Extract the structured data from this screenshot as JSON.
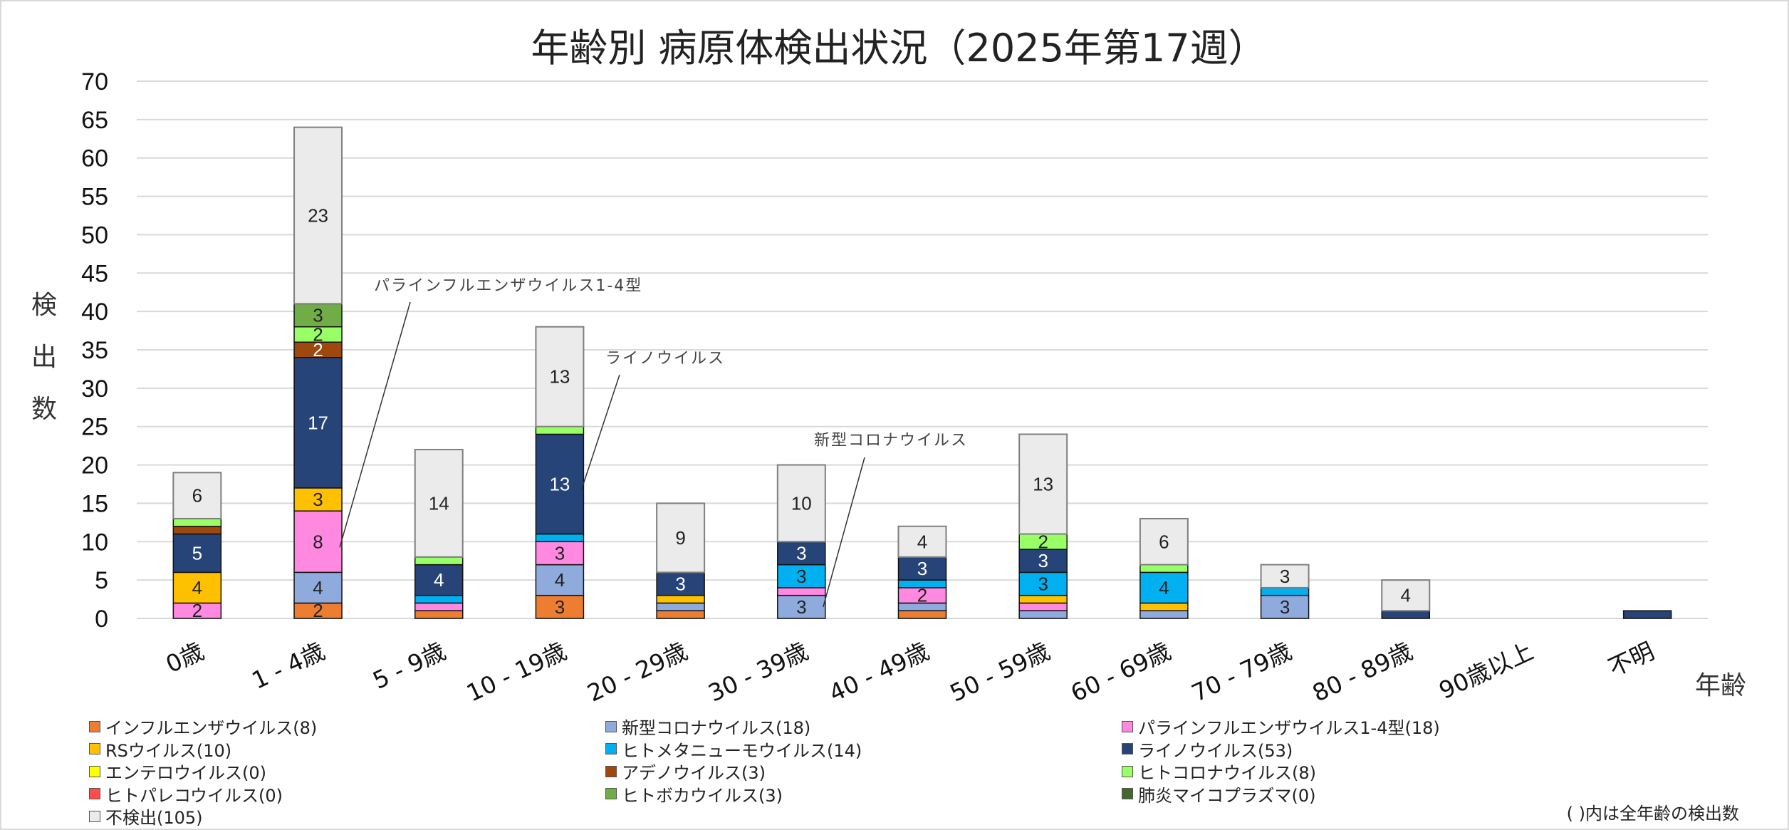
{
  "chart_data": {
    "type": "bar",
    "stacked": true,
    "title": "年齢別 病原体検出状況（2025年第17週）",
    "xlabel": "年齢",
    "ylabel": "検出数",
    "ylim": [
      0,
      70
    ],
    "yticks": [
      0,
      5,
      10,
      15,
      20,
      25,
      30,
      35,
      40,
      45,
      50,
      55,
      60,
      65,
      70
    ],
    "grid": true,
    "legend_position": "bottom",
    "categories": [
      "0歳",
      "1 - 4歳",
      "5 - 9歳",
      "10 - 19歳",
      "20 - 29歳",
      "30 - 39歳",
      "40 - 49歳",
      "50 - 59歳",
      "60 - 69歳",
      "70 - 79歳",
      "80 - 89歳",
      "90歳以上",
      "不明"
    ],
    "series": [
      {
        "name": "インフルエンザウイルス",
        "total": 8,
        "color": "#ED7D31",
        "label_color": "#222222",
        "values": [
          0,
          2,
          1,
          3,
          1,
          0,
          1,
          0,
          0,
          0,
          0,
          0,
          0
        ]
      },
      {
        "name": "新型コロナウイルス",
        "total": 18,
        "color": "#8FAADC",
        "label_color": "#222222",
        "values": [
          0,
          4,
          0,
          4,
          1,
          3,
          1,
          1,
          1,
          3,
          0,
          0,
          0
        ]
      },
      {
        "name": "パラインフルエンザウイルス1-4型",
        "total": 18,
        "color": "#FF88E0",
        "label_color": "#222222",
        "values": [
          2,
          8,
          1,
          3,
          0,
          1,
          2,
          1,
          0,
          0,
          0,
          0,
          0
        ]
      },
      {
        "name": "RSウイルス",
        "total": 10,
        "color": "#FFC000",
        "label_color": "#222222",
        "values": [
          4,
          3,
          0,
          0,
          1,
          0,
          0,
          1,
          1,
          0,
          0,
          0,
          0
        ]
      },
      {
        "name": "ヒトメタニューモウイルス",
        "total": 14,
        "color": "#00B0F0",
        "label_color": "#222222",
        "values": [
          0,
          0,
          1,
          1,
          0,
          3,
          1,
          3,
          4,
          1,
          0,
          0,
          0
        ]
      },
      {
        "name": "ライノウイルス",
        "total": 53,
        "color": "#264478",
        "label_color": "#FFFFFF",
        "values": [
          5,
          17,
          4,
          13,
          3,
          3,
          3,
          3,
          0,
          0,
          1,
          0,
          1
        ]
      },
      {
        "name": "エンテロウイルス",
        "total": 0,
        "color": "#FFFF00",
        "label_color": "#222222",
        "values": [
          0,
          0,
          0,
          0,
          0,
          0,
          0,
          0,
          0,
          0,
          0,
          0,
          0
        ]
      },
      {
        "name": "アデノウイルス",
        "total": 3,
        "color": "#9E480E",
        "label_color": "#FFFFFF",
        "values": [
          1,
          2,
          0,
          0,
          0,
          0,
          0,
          0,
          0,
          0,
          0,
          0,
          0
        ]
      },
      {
        "name": "ヒトコロナウイルス",
        "total": 8,
        "color": "#99FF66",
        "label_color": "#222222",
        "values": [
          1,
          2,
          1,
          1,
          0,
          0,
          0,
          2,
          1,
          0,
          0,
          0,
          0
        ]
      },
      {
        "name": "ヒトパレコウイルス",
        "total": 0,
        "color": "#FF4B4B",
        "label_color": "#222222",
        "values": [
          0,
          0,
          0,
          0,
          0,
          0,
          0,
          0,
          0,
          0,
          0,
          0,
          0
        ]
      },
      {
        "name": "ヒトボカウイルス",
        "total": 3,
        "color": "#70AD47",
        "label_color": "#222222",
        "values": [
          0,
          3,
          0,
          0,
          0,
          0,
          0,
          0,
          0,
          0,
          0,
          0,
          0
        ]
      },
      {
        "name": "肺炎マイコプラズマ",
        "total": 0,
        "color": "#43682B",
        "label_color": "#FFFFFF",
        "values": [
          0,
          0,
          0,
          0,
          0,
          0,
          0,
          0,
          0,
          0,
          0,
          0,
          0
        ]
      },
      {
        "name": "不検出",
        "total": 105,
        "color": "#EBEBEB",
        "label_color": "#222222",
        "values": [
          6,
          23,
          14,
          13,
          9,
          10,
          4,
          13,
          6,
          3,
          4,
          0,
          0
        ]
      }
    ],
    "data_labels_min": 2,
    "annotations": [
      {
        "text": "パラインフルエンザウイルス1-4型",
        "category": "1 - 4歳",
        "series": "パラインフルエンザウイルス1-4型"
      },
      {
        "text": "ライノウイルス",
        "category": "10 - 19歳",
        "series": "ライノウイルス"
      },
      {
        "text": "新型コロナウイルス",
        "category": "30 - 39歳",
        "series": "新型コロナウイルス"
      }
    ],
    "legend_order": [
      "インフルエンザウイルス",
      "新型コロナウイルス",
      "パラインフルエンザウイルス1-4型",
      "RSウイルス",
      "ヒトメタニューモウイルス",
      "ライノウイルス",
      "エンテロウイルス",
      "アデノウイルス",
      "ヒトコロナウイルス",
      "ヒトパレコウイルス",
      "ヒトボカウイルス",
      "肺炎マイコプラズマ",
      "不検出"
    ],
    "note": "( )内は全年齢の検出数"
  }
}
